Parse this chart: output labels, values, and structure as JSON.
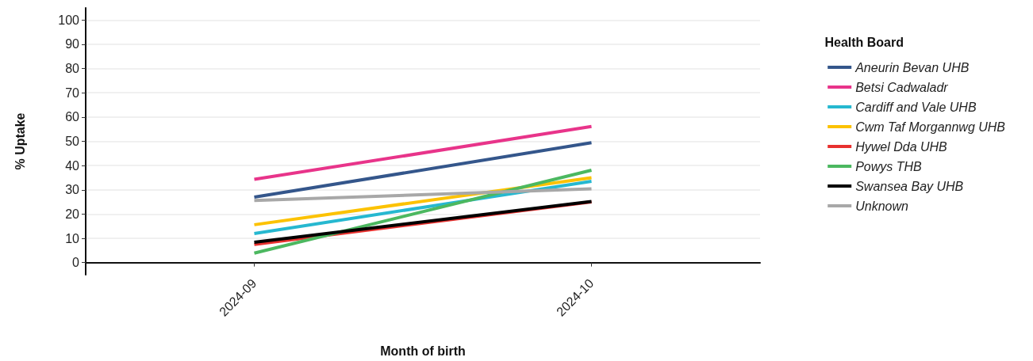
{
  "chart_data": {
    "type": "line",
    "xlabel": "Month of birth",
    "ylabel": "% Uptake",
    "legend_title": "Health Board",
    "categories": [
      "2024-09",
      "2024-10"
    ],
    "series": [
      {
        "name": "Aneurin Bevan UHB",
        "color": "#34568b",
        "values": [
          27,
          49.4
        ]
      },
      {
        "name": "Betsi Cadwaladr",
        "color": "#e8348a",
        "values": [
          34.3,
          56.1
        ]
      },
      {
        "name": "Cardiff and Vale UHB",
        "color": "#26b8d0",
        "values": [
          12,
          33.5
        ]
      },
      {
        "name": "Cwm Taf Morgannwg UHB",
        "color": "#fcc200",
        "values": [
          15.6,
          35
        ]
      },
      {
        "name": "Hywel Dda UHB",
        "color": "#e8312f",
        "values": [
          7.5,
          25
        ]
      },
      {
        "name": "Powys THB",
        "color": "#4cb860",
        "values": [
          3.9,
          38.1
        ]
      },
      {
        "name": "Swansea Bay UHB",
        "color": "#000000",
        "values": [
          8.4,
          25.2
        ]
      },
      {
        "name": "Unknown",
        "color": "#a8a8a8",
        "values": [
          25.6,
          30.4
        ]
      }
    ],
    "ylim": [
      -5,
      105
    ],
    "yticks": [
      0,
      10,
      20,
      30,
      40,
      50,
      60,
      70,
      80,
      90,
      100
    ],
    "grid": "y",
    "legend": "right",
    "marker": "none",
    "line_style": "solid"
  }
}
